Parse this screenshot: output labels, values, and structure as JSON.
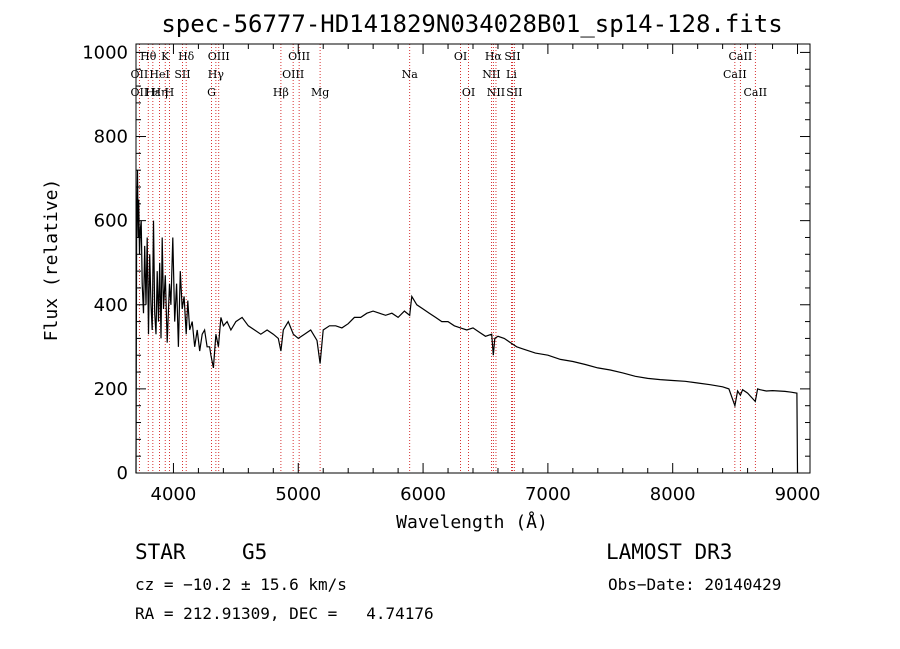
{
  "chart_data": {
    "type": "line",
    "title": "spec-56777-HD141829N034028B01_sp14-128.fits",
    "xlabel": "Wavelength (Å)",
    "ylabel": "Flux (relative)",
    "xlim": [
      3700,
      9100
    ],
    "ylim": [
      0,
      1020
    ],
    "xticks": [
      4000,
      5000,
      6000,
      7000,
      8000,
      9000
    ],
    "yticks": [
      0,
      200,
      400,
      600,
      800,
      1000
    ],
    "grid": false,
    "series": [
      {
        "x": [
          3700,
          3705,
          3712,
          3718,
          3722,
          3728,
          3735,
          3742,
          3750,
          3760,
          3770,
          3780,
          3790,
          3800,
          3810,
          3820,
          3830,
          3840,
          3850,
          3860,
          3870,
          3880,
          3890,
          3900,
          3910,
          3920,
          3935,
          3950,
          3968,
          3980,
          3995,
          4010,
          4025,
          4040,
          4055,
          4070,
          4085,
          4102,
          4115,
          4130,
          4150,
          4170,
          4190,
          4210,
          4230,
          4250,
          4270,
          4290,
          4300,
          4320,
          4340,
          4360,
          4380,
          4400,
          4430,
          4460,
          4500,
          4550,
          4600,
          4650,
          4700,
          4750,
          4800,
          4840,
          4861,
          4880,
          4920,
          4960,
          5000,
          5050,
          5100,
          5150,
          5175,
          5200,
          5250,
          5300,
          5350,
          5400,
          5450,
          5500,
          5550,
          5600,
          5650,
          5700,
          5750,
          5800,
          5850,
          5893,
          5900,
          5910,
          5950,
          6000,
          6050,
          6100,
          6150,
          6200,
          6250,
          6300,
          6350,
          6400,
          6450,
          6500,
          6550,
          6563,
          6575,
          6600,
          6650,
          6700,
          6750,
          6800,
          6900,
          7000,
          7100,
          7200,
          7300,
          7400,
          7500,
          7600,
          7700,
          7800,
          7900,
          8000,
          8100,
          8200,
          8300,
          8400,
          8450,
          8498,
          8520,
          8542,
          8560,
          8600,
          8662,
          8680,
          8700,
          8750,
          8800,
          8850,
          8900,
          8950,
          8995,
          9000
        ],
        "y": [
          0,
          560,
          720,
          560,
          650,
          520,
          580,
          600,
          450,
          380,
          540,
          400,
          560,
          330,
          520,
          400,
          340,
          600,
          380,
          330,
          480,
          360,
          500,
          320,
          560,
          390,
          470,
          310,
          450,
          400,
          560,
          360,
          450,
          300,
          480,
          390,
          420,
          330,
          410,
          340,
          360,
          300,
          340,
          290,
          330,
          340,
          300,
          300,
          280,
          250,
          330,
          300,
          370,
          350,
          360,
          340,
          360,
          370,
          350,
          340,
          330,
          340,
          330,
          320,
          290,
          340,
          360,
          330,
          320,
          330,
          340,
          315,
          260,
          340,
          350,
          350,
          345,
          355,
          370,
          370,
          380,
          385,
          380,
          375,
          380,
          370,
          385,
          375,
          395,
          420,
          400,
          390,
          380,
          370,
          360,
          360,
          350,
          345,
          340,
          345,
          335,
          325,
          330,
          280,
          320,
          325,
          320,
          310,
          300,
          295,
          285,
          280,
          270,
          265,
          258,
          250,
          245,
          238,
          230,
          225,
          222,
          220,
          218,
          214,
          210,
          205,
          200,
          160,
          195,
          185,
          198,
          190,
          170,
          200,
          198,
          195,
          196,
          195,
          194,
          192,
          190,
          0
        ]
      }
    ],
    "line_labels": [
      {
        "label": "Hθ",
        "wavelength": 3798,
        "row": 1
      },
      {
        "label": "OII",
        "wavelength": 3727,
        "row": 2
      },
      {
        "label": "OII",
        "wavelength": 3727,
        "row": 3
      },
      {
        "label": "Hε",
        "wavelength": 3835,
        "row": 3
      },
      {
        "label": "HeI",
        "wavelength": 3889,
        "row": 2
      },
      {
        "label": "Hη",
        "wavelength": 3889,
        "row": 3
      },
      {
        "label": "K",
        "wavelength": 3934,
        "row": 1
      },
      {
        "label": "SII",
        "wavelength": 4072,
        "row": 2
      },
      {
        "label": "H",
        "wavelength": 3968,
        "row": 3
      },
      {
        "label": "Hδ",
        "wavelength": 4102,
        "row": 1
      },
      {
        "label": "OIII",
        "wavelength": 4363,
        "row": 1
      },
      {
        "label": "Hγ",
        "wavelength": 4340,
        "row": 2
      },
      {
        "label": "G",
        "wavelength": 4305,
        "row": 3
      },
      {
        "label": "OIII",
        "wavelength": 5007,
        "row": 1
      },
      {
        "label": "OIII",
        "wavelength": 4959,
        "row": 2
      },
      {
        "label": "Hβ",
        "wavelength": 4861,
        "row": 3
      },
      {
        "label": "Mg",
        "wavelength": 5175,
        "row": 3
      },
      {
        "label": "Na",
        "wavelength": 5893,
        "row": 2
      },
      {
        "label": "OI",
        "wavelength": 6300,
        "row": 1
      },
      {
        "label": "OI",
        "wavelength": 6364,
        "row": 3
      },
      {
        "label": "Hα",
        "wavelength": 6563,
        "row": 1
      },
      {
        "label": "SII",
        "wavelength": 6716,
        "row": 1
      },
      {
        "label": "NII",
        "wavelength": 6548,
        "row": 2
      },
      {
        "label": "Li",
        "wavelength": 6708,
        "row": 2
      },
      {
        "label": "NII",
        "wavelength": 6584,
        "row": 3
      },
      {
        "label": "SII",
        "wavelength": 6731,
        "row": 3
      },
      {
        "label": "CaII",
        "wavelength": 8542,
        "row": 1
      },
      {
        "label": "CaII",
        "wavelength": 8498,
        "row": 2
      },
      {
        "label": "CaII",
        "wavelength": 8662,
        "row": 3
      }
    ],
    "line_markers": [
      3727,
      3798,
      3835,
      3889,
      3934,
      3968,
      4072,
      4102,
      4305,
      4340,
      4363,
      4861,
      4959,
      5007,
      5175,
      5893,
      6300,
      6364,
      6548,
      6563,
      6584,
      6708,
      6716,
      6731,
      8498,
      8542,
      8662
    ],
    "colors": {
      "spectrum": "#000000",
      "marker": "#cc0000",
      "axis": "#000000"
    }
  },
  "info": {
    "class": "STAR",
    "subclass": "G5",
    "survey": "LAMOST DR3",
    "redshift": "cz = −10.2 ± 15.6 km/s",
    "obs_date": "Obs−Date: 20140429",
    "coords": "RA = 212.91309, DEC =   4.74176"
  }
}
